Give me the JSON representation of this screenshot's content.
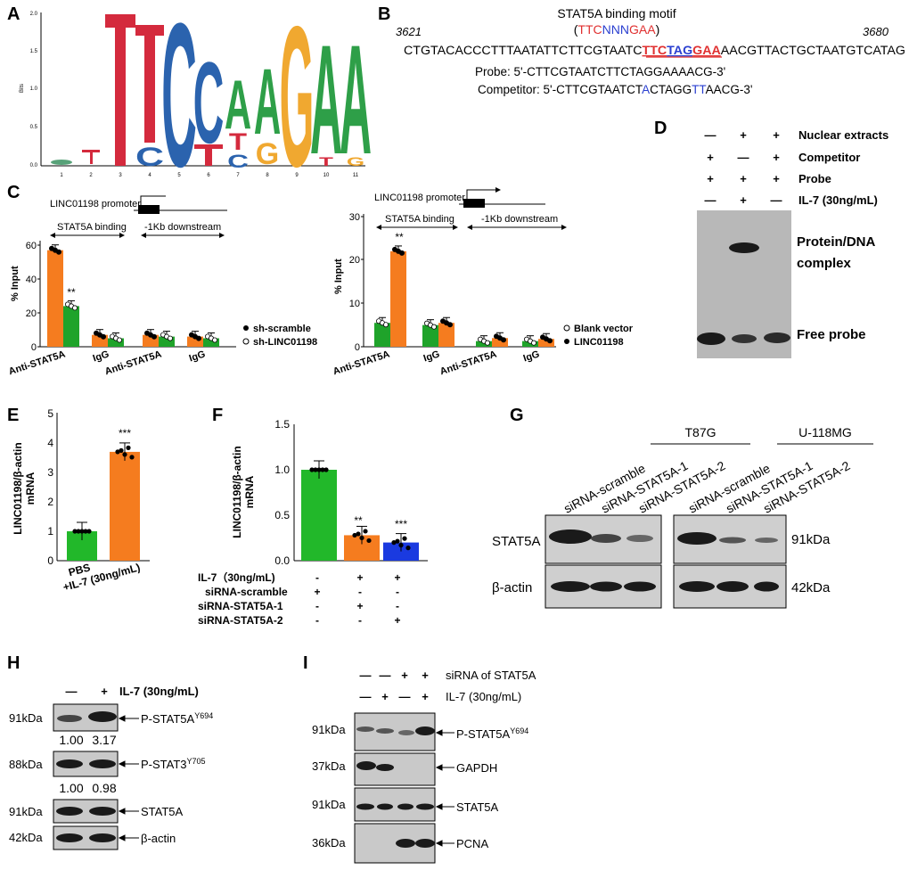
{
  "panels": {
    "A": "A",
    "B": "B",
    "C": "C",
    "D": "D",
    "E": "E",
    "F": "F",
    "G": "G",
    "H": "H",
    "I": "I"
  },
  "panelA": {
    "ylabel": "Bits",
    "yticks": [
      "0.0",
      "0.5",
      "1.0",
      "1.5",
      "2.0"
    ],
    "xticks": [
      "1",
      "2",
      "3",
      "4",
      "5",
      "6",
      "7",
      "8",
      "9",
      "10",
      "11"
    ],
    "letters": [
      "T",
      "T",
      "C",
      "C",
      "A",
      "G",
      "A",
      "A",
      "C",
      "T",
      "C",
      "T",
      "G",
      "T",
      "G"
    ]
  },
  "panelB": {
    "title": "STAT5A binding motif",
    "motif_prefix": "(",
    "motif_ttc": "TTC",
    "motif_nnn": "NNN",
    "motif_gaa": "GAA",
    "motif_suffix": ")",
    "pos_start": "3621",
    "pos_end": "3680",
    "seq_pre": "CTGTACACCCTTTAATATTCTTCGTAATC",
    "seq_ttc": "TTC",
    "seq_tag": "TAG",
    "seq_gaa": "GAA",
    "seq_post": "AACGTTACTGCTAATGTCATAG",
    "probe": "Probe: 5'-CTTCGTAATCTTCTAGGAAAACG-3'",
    "competitor_1": "Competitor: 5'-CTTCGTAATCT",
    "competitor_a": "A",
    "competitor_2": "CTAGG",
    "competitor_tt": "TT",
    "competitor_3": "AACG-3'"
  },
  "panelC": {
    "promoter": "LINC01198 promoter",
    "binding": "STAT5A binding",
    "downstream": "-1Kb downstream",
    "ylabel": "% Input",
    "left_yticks": [
      "0",
      "20",
      "40",
      "60"
    ],
    "right_yticks": [
      "0",
      "10",
      "20",
      "30"
    ],
    "categories": [
      "Anti-STAT5A",
      "IgG",
      "Anti-STAT5A",
      "IgG"
    ],
    "sig": "**",
    "left_legend": [
      "sh-scramble",
      "sh-LINC01198"
    ],
    "right_legend": [
      "Blank vector",
      "LINC01198"
    ]
  },
  "panelD": {
    "rows": [
      {
        "label": "Nuclear extracts",
        "v": [
          "—",
          "+",
          "+"
        ]
      },
      {
        "label": "Competitor",
        "v": [
          "+",
          "—",
          "+"
        ]
      },
      {
        "label": "Probe",
        "v": [
          "+",
          "+",
          "+"
        ]
      },
      {
        "label": "IL-7 (30ng/mL)",
        "v": [
          "—",
          "+",
          "—"
        ]
      }
    ],
    "complex_1": "Protein/DNA",
    "complex_2": "complex",
    "free": "Free probe"
  },
  "panelE": {
    "ylabel_1": "LINC01198/β-actin",
    "ylabel_2": "mRNA",
    "yticks": [
      "0",
      "1",
      "2",
      "3",
      "4",
      "5"
    ],
    "categories": [
      "PBS",
      "+IL-7 (30ng/mL)"
    ],
    "sig": "***"
  },
  "panelF": {
    "ylabel_1": "LINC01198/β-actin",
    "ylabel_2": "mRNA",
    "yticks": [
      "0.0",
      "0.5",
      "1.0",
      "1.5"
    ],
    "sig": [
      "**",
      "***"
    ],
    "rows": [
      {
        "label": "IL-7（30ng/mL)",
        "v": [
          "-",
          "+",
          "+"
        ]
      },
      {
        "label": "siRNA-scramble",
        "v": [
          "+",
          "-",
          "-"
        ]
      },
      {
        "label": "siRNA-STAT5A-1",
        "v": [
          "-",
          "+",
          "-"
        ]
      },
      {
        "label": "siRNA-STAT5A-2",
        "v": [
          "-",
          "-",
          "+"
        ]
      }
    ]
  },
  "panelG": {
    "cell1": "T87G",
    "cell2": "U-118MG",
    "lanes": [
      "siRNA-scramble",
      "siRNA-STAT5A-1",
      "siRNA-STAT5A-2",
      "siRNA-scramble",
      "siRNA-STAT5A-1",
      "siRNA-STAT5A-2"
    ],
    "row1": "STAT5A",
    "row2": "β-actin",
    "kda1": "91kDa",
    "kda2": "42kDa"
  },
  "panelH": {
    "dash": "—",
    "plus": "+",
    "il7": "IL-7 (30ng/mL)",
    "rows": [
      {
        "kda": "91kDa",
        "label": "P-STAT5A",
        "sup": "Y694"
      },
      {
        "kda": "88kDa",
        "label": "P-STAT3",
        "sup": "Y705"
      },
      {
        "kda": "91kDa",
        "label": "STAT5A",
        "sup": ""
      },
      {
        "kda": "42kDa",
        "label": "β-actin",
        "sup": ""
      }
    ],
    "quant1": [
      "1.00",
      "3.17"
    ],
    "quant2": [
      "1.00",
      "0.98"
    ]
  },
  "panelI": {
    "row1_label": "siRNA of STAT5A",
    "row1_v": [
      "—",
      "—",
      "+",
      "+"
    ],
    "row2_label": "IL-7 (30ng/mL)",
    "row2_v": [
      "—",
      "+",
      "—",
      "+"
    ],
    "rows": [
      {
        "kda": "91kDa",
        "label": "P-STAT5A",
        "sup": "Y694"
      },
      {
        "kda": "37kDa",
        "label": "GAPDH",
        "sup": ""
      },
      {
        "kda": "91kDa",
        "label": "STAT5A",
        "sup": ""
      },
      {
        "kda": "36kDa",
        "label": "PCNA",
        "sup": ""
      }
    ]
  },
  "chart_data": [
    {
      "type": "sequence-logo",
      "panel": "A",
      "ylabel": "Bits",
      "ylim": [
        0,
        2
      ],
      "positions": [
        1,
        2,
        3,
        4,
        5,
        6,
        7,
        8,
        9,
        10,
        11
      ],
      "consensus": [
        "-",
        "-",
        "T",
        "T",
        "C",
        "C",
        "A",
        "G",
        "A",
        "A",
        "-"
      ],
      "heights": [
        0.05,
        0.12,
        2.0,
        1.8,
        1.8,
        1.4,
        0.6,
        0.55,
        1.8,
        1.6,
        1.6
      ]
    },
    {
      "type": "bar",
      "panel": "C-left",
      "ylabel": "% Input",
      "ylim": [
        0,
        70
      ],
      "categories": [
        "Anti-STAT5A",
        "IgG",
        "Anti-STAT5A",
        "IgG"
      ],
      "series": [
        {
          "name": "sh-scramble",
          "values": [
            57,
            7,
            7,
            6
          ]
        },
        {
          "name": "sh-LINC01198",
          "values": [
            24,
            5,
            6,
            5
          ]
        }
      ]
    },
    {
      "type": "bar",
      "panel": "C-right",
      "ylabel": "% Input",
      "ylim": [
        0,
        30
      ],
      "categories": [
        "Anti-STAT5A",
        "IgG",
        "Anti-STAT5A",
        "IgG"
      ],
      "series": [
        {
          "name": "Blank vector",
          "values": [
            5.5,
            5,
            1.3,
            1.3
          ]
        },
        {
          "name": "LINC01198",
          "values": [
            22,
            5.5,
            2,
            1.8
          ]
        }
      ]
    },
    {
      "type": "bar",
      "panel": "E",
      "ylabel": "LINC01198/β-actin mRNA",
      "ylim": [
        0,
        5
      ],
      "categories": [
        "PBS",
        "+IL-7 (30ng/mL)"
      ],
      "values": [
        1.0,
        3.7
      ]
    },
    {
      "type": "bar",
      "panel": "F",
      "ylabel": "LINC01198/β-actin mRNA",
      "ylim": [
        0,
        1.5
      ],
      "categories": [
        "siRNA-scramble",
        "siRNA-STAT5A-1",
        "siRNA-STAT5A-2"
      ],
      "values": [
        1.0,
        0.28,
        0.2
      ]
    }
  ]
}
